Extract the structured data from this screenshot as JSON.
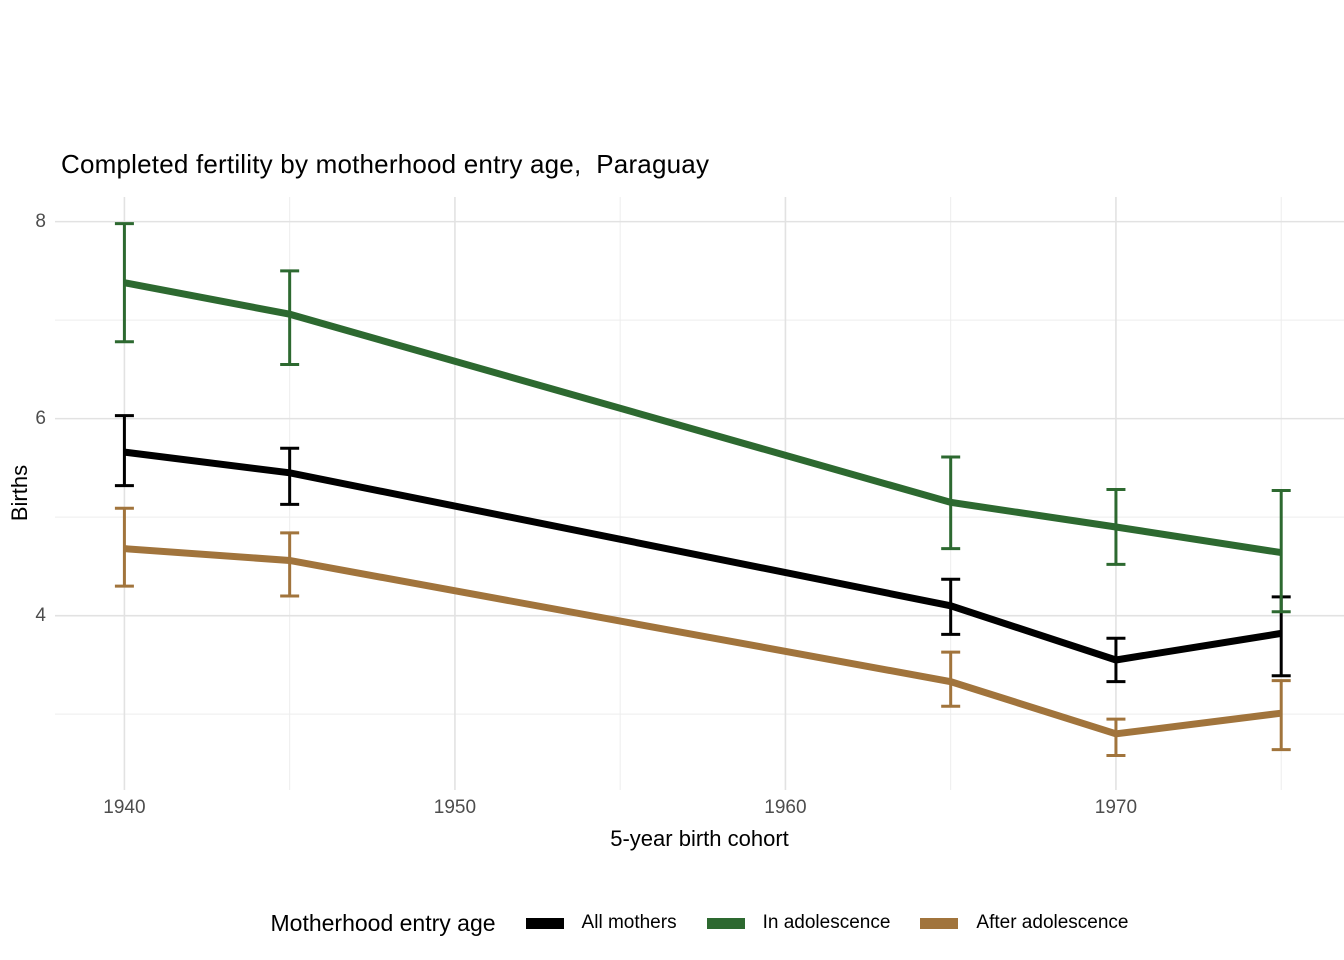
{
  "title": "Completed fertility by motherhood entry age,  Paraguay",
  "axes": {
    "x_title": "5-year birth cohort",
    "y_title": "Births"
  },
  "legend": {
    "title": "Motherhood entry age",
    "items": [
      {
        "label": "All mothers",
        "color": "#000000"
      },
      {
        "label": "In adolescence",
        "color": "#2D6930"
      },
      {
        "label": "After adolescence",
        "color": "#A1743C"
      }
    ]
  },
  "colors": {
    "background": "#FFFFFF",
    "grid_major": "#E2E2E2",
    "grid_minor": "#EDEDED",
    "tick_text": "#4D4D4D",
    "text": "#000000"
  },
  "chart_data": {
    "type": "line",
    "title": "Completed fertility by motherhood entry age,  Paraguay",
    "xlabel": "5-year birth cohort",
    "ylabel": "Births",
    "x": [
      1940,
      1945,
      1965,
      1970,
      1975
    ],
    "series": [
      {
        "name": "All mothers",
        "color": "#000000",
        "values": [
          5.66,
          5.45,
          4.1,
          3.55,
          3.82
        ],
        "ci_low": [
          5.32,
          5.13,
          3.81,
          3.33,
          3.39
        ],
        "ci_high": [
          6.03,
          5.7,
          4.37,
          3.77,
          4.19
        ]
      },
      {
        "name": "In adolescence",
        "color": "#2D6930",
        "values": [
          7.38,
          7.06,
          5.15,
          4.9,
          4.64
        ],
        "ci_low": [
          6.78,
          6.55,
          4.68,
          4.52,
          4.04
        ],
        "ci_high": [
          7.98,
          7.5,
          5.61,
          5.28,
          5.27
        ]
      },
      {
        "name": "After adolescence",
        "color": "#A1743C",
        "values": [
          4.68,
          4.56,
          3.33,
          2.8,
          3.01
        ],
        "ci_low": [
          4.3,
          4.2,
          3.08,
          2.58,
          2.64
        ],
        "ci_high": [
          5.09,
          4.84,
          3.63,
          2.95,
          3.34
        ]
      }
    ],
    "error_bars": true,
    "x_tick_values": [
      1940,
      1950,
      1960,
      1970
    ],
    "x_tick_labels": [
      "1940",
      "1950",
      "1960",
      "1970"
    ],
    "x_minor_gridlines": [
      1945,
      1955,
      1965,
      1975
    ],
    "y_tick_values": [
      8,
      6,
      4
    ],
    "y_tick_labels": [
      "8",
      "6",
      "4"
    ],
    "y_minor_gridlines": [
      7,
      5,
      3
    ],
    "xlim": [
      1937.9,
      1976.9
    ],
    "ylim": [
      2.23,
      8.25
    ],
    "grid": true,
    "legend_position": "bottom",
    "legend_title": "Motherhood entry age"
  }
}
